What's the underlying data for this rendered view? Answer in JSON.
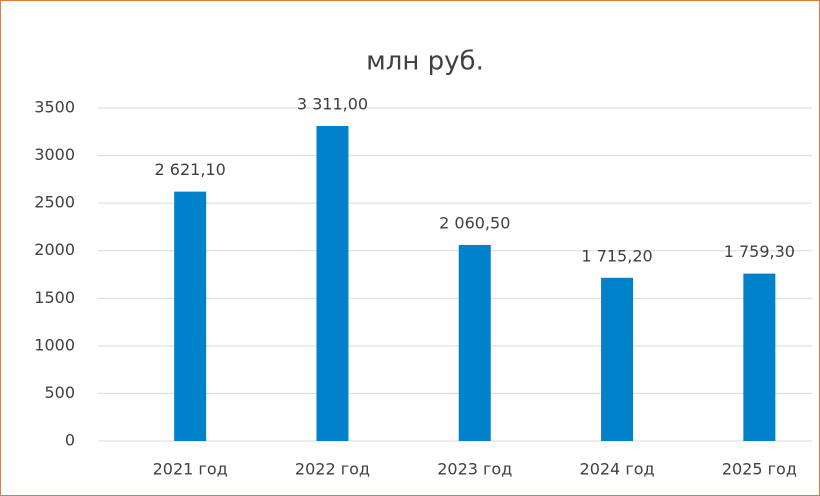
{
  "chart_data": {
    "type": "bar",
    "title": "млн руб.",
    "categories": [
      "2021 год",
      "2022 год",
      "2023 год",
      "2024 год",
      "2025 год"
    ],
    "values": [
      2621.1,
      3311,
      2060.5,
      1715.2,
      1759.3
    ],
    "value_labels": [
      "2 621,10",
      "3 311,00",
      "2 060,50",
      "1 715,20",
      "1 759,30"
    ],
    "color": "#0082ca",
    "ylim": [
      0,
      3500
    ],
    "yticks": [
      0,
      500,
      1000,
      1500,
      2000,
      2500,
      3000,
      3500
    ],
    "grid": true
  }
}
